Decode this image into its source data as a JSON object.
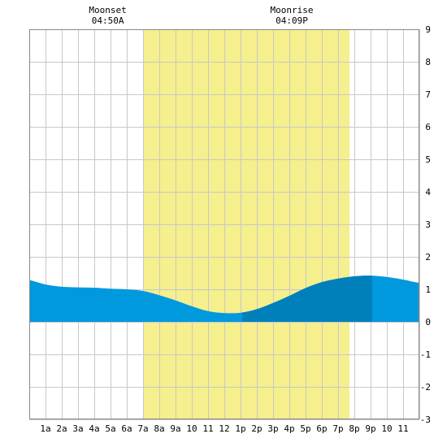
{
  "chart_data": {
    "type": "area",
    "title": "",
    "xlabel": "",
    "ylabel": "",
    "xlim": [
      0,
      24
    ],
    "ylim": [
      -3,
      9
    ],
    "grid": true,
    "x_tick_labels": [
      "1a",
      "2a",
      "3a",
      "4a",
      "5a",
      "6a",
      "7a",
      "8a",
      "9a",
      "10",
      "11",
      "12",
      "1p",
      "2p",
      "3p",
      "4p",
      "5p",
      "6p",
      "7p",
      "8p",
      "9p",
      "10",
      "11"
    ],
    "y_ticks": [
      -3,
      -2,
      -1,
      0,
      1,
      2,
      3,
      4,
      5,
      6,
      7,
      8,
      9
    ],
    "daylight": {
      "start_hour": 7.0,
      "end_hour": 19.7
    },
    "highlight": {
      "start_hour": 13.1,
      "end_hour": 21.1
    },
    "moon_events": [
      {
        "label": "Moonset",
        "time": "04:50A",
        "hour": 4.83
      },
      {
        "label": "Moonrise",
        "time": "04:09P",
        "hour": 16.15
      }
    ],
    "series": [
      {
        "x": [
          0,
          1,
          2,
          3,
          4,
          5,
          6,
          7,
          8,
          9,
          10,
          11,
          12,
          13,
          14,
          15,
          16,
          17,
          18,
          19,
          20,
          21,
          22,
          23,
          24
        ],
        "values": [
          1.28,
          1.15,
          1.08,
          1.06,
          1.05,
          1.02,
          1.0,
          0.95,
          0.82,
          0.66,
          0.48,
          0.33,
          0.27,
          0.28,
          0.39,
          0.58,
          0.8,
          1.04,
          1.22,
          1.33,
          1.4,
          1.42,
          1.38,
          1.3,
          1.2
        ]
      }
    ],
    "colors": {
      "daylight": "#f5ef8d",
      "tide": "#0099dd",
      "tide_highlight": "#0080bb",
      "grid": "#c8c8c8",
      "frame": "#888888",
      "background": "#ffffff"
    }
  }
}
